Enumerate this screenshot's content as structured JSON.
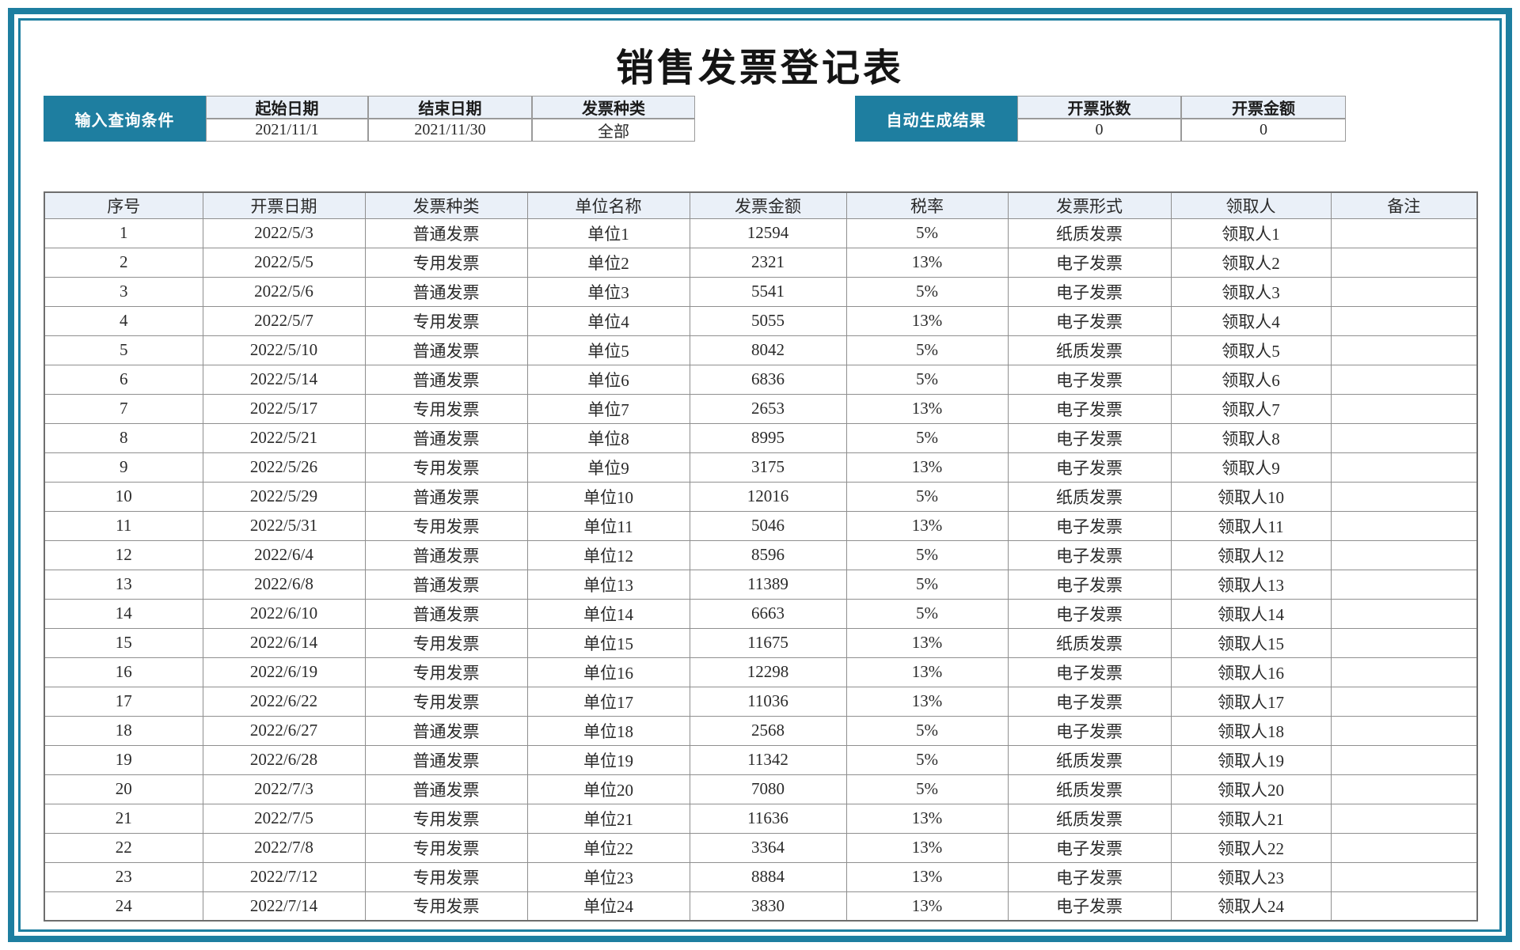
{
  "page": {
    "title": "销售发票登记表",
    "colors": {
      "accent": "#1E7EA0",
      "header_tint": "#EAF0F8"
    }
  },
  "query_panel": {
    "label": "输入查询条件",
    "fields": [
      {
        "label": "起始日期",
        "value": "2021/11/1"
      },
      {
        "label": "结束日期",
        "value": "2021/11/30"
      },
      {
        "label": "发票种类",
        "value": "全部"
      }
    ]
  },
  "result_panel": {
    "label": "自动生成结果",
    "fields": [
      {
        "label": "开票张数",
        "value": "0"
      },
      {
        "label": "开票金额",
        "value": "0"
      }
    ]
  },
  "invoice_table": {
    "columns": [
      "序号",
      "开票日期",
      "发票种类",
      "单位名称",
      "发票金额",
      "税率",
      "发票形式",
      "领取人",
      "备注"
    ],
    "rows": [
      [
        "1",
        "2022/5/3",
        "普通发票",
        "单位1",
        "12594",
        "5%",
        "纸质发票",
        "领取人1",
        ""
      ],
      [
        "2",
        "2022/5/5",
        "专用发票",
        "单位2",
        "2321",
        "13%",
        "电子发票",
        "领取人2",
        ""
      ],
      [
        "3",
        "2022/5/6",
        "普通发票",
        "单位3",
        "5541",
        "5%",
        "电子发票",
        "领取人3",
        ""
      ],
      [
        "4",
        "2022/5/7",
        "专用发票",
        "单位4",
        "5055",
        "13%",
        "电子发票",
        "领取人4",
        ""
      ],
      [
        "5",
        "2022/5/10",
        "普通发票",
        "单位5",
        "8042",
        "5%",
        "纸质发票",
        "领取人5",
        ""
      ],
      [
        "6",
        "2022/5/14",
        "普通发票",
        "单位6",
        "6836",
        "5%",
        "电子发票",
        "领取人6",
        ""
      ],
      [
        "7",
        "2022/5/17",
        "专用发票",
        "单位7",
        "2653",
        "13%",
        "电子发票",
        "领取人7",
        ""
      ],
      [
        "8",
        "2022/5/21",
        "普通发票",
        "单位8",
        "8995",
        "5%",
        "电子发票",
        "领取人8",
        ""
      ],
      [
        "9",
        "2022/5/26",
        "专用发票",
        "单位9",
        "3175",
        "13%",
        "电子发票",
        "领取人9",
        ""
      ],
      [
        "10",
        "2022/5/29",
        "普通发票",
        "单位10",
        "12016",
        "5%",
        "纸质发票",
        "领取人10",
        ""
      ],
      [
        "11",
        "2022/5/31",
        "专用发票",
        "单位11",
        "5046",
        "13%",
        "电子发票",
        "领取人11",
        ""
      ],
      [
        "12",
        "2022/6/4",
        "普通发票",
        "单位12",
        "8596",
        "5%",
        "电子发票",
        "领取人12",
        ""
      ],
      [
        "13",
        "2022/6/8",
        "普通发票",
        "单位13",
        "11389",
        "5%",
        "电子发票",
        "领取人13",
        ""
      ],
      [
        "14",
        "2022/6/10",
        "普通发票",
        "单位14",
        "6663",
        "5%",
        "电子发票",
        "领取人14",
        ""
      ],
      [
        "15",
        "2022/6/14",
        "专用发票",
        "单位15",
        "11675",
        "13%",
        "纸质发票",
        "领取人15",
        ""
      ],
      [
        "16",
        "2022/6/19",
        "专用发票",
        "单位16",
        "12298",
        "13%",
        "电子发票",
        "领取人16",
        ""
      ],
      [
        "17",
        "2022/6/22",
        "专用发票",
        "单位17",
        "11036",
        "13%",
        "电子发票",
        "领取人17",
        ""
      ],
      [
        "18",
        "2022/6/27",
        "普通发票",
        "单位18",
        "2568",
        "5%",
        "电子发票",
        "领取人18",
        ""
      ],
      [
        "19",
        "2022/6/28",
        "普通发票",
        "单位19",
        "11342",
        "5%",
        "纸质发票",
        "领取人19",
        ""
      ],
      [
        "20",
        "2022/7/3",
        "普通发票",
        "单位20",
        "7080",
        "5%",
        "纸质发票",
        "领取人20",
        ""
      ],
      [
        "21",
        "2022/7/5",
        "专用发票",
        "单位21",
        "11636",
        "13%",
        "纸质发票",
        "领取人21",
        ""
      ],
      [
        "22",
        "2022/7/8",
        "专用发票",
        "单位22",
        "3364",
        "13%",
        "电子发票",
        "领取人22",
        ""
      ],
      [
        "23",
        "2022/7/12",
        "专用发票",
        "单位23",
        "8884",
        "13%",
        "电子发票",
        "领取人23",
        ""
      ],
      [
        "24",
        "2022/7/14",
        "专用发票",
        "单位24",
        "3830",
        "13%",
        "电子发票",
        "领取人24",
        ""
      ]
    ]
  }
}
